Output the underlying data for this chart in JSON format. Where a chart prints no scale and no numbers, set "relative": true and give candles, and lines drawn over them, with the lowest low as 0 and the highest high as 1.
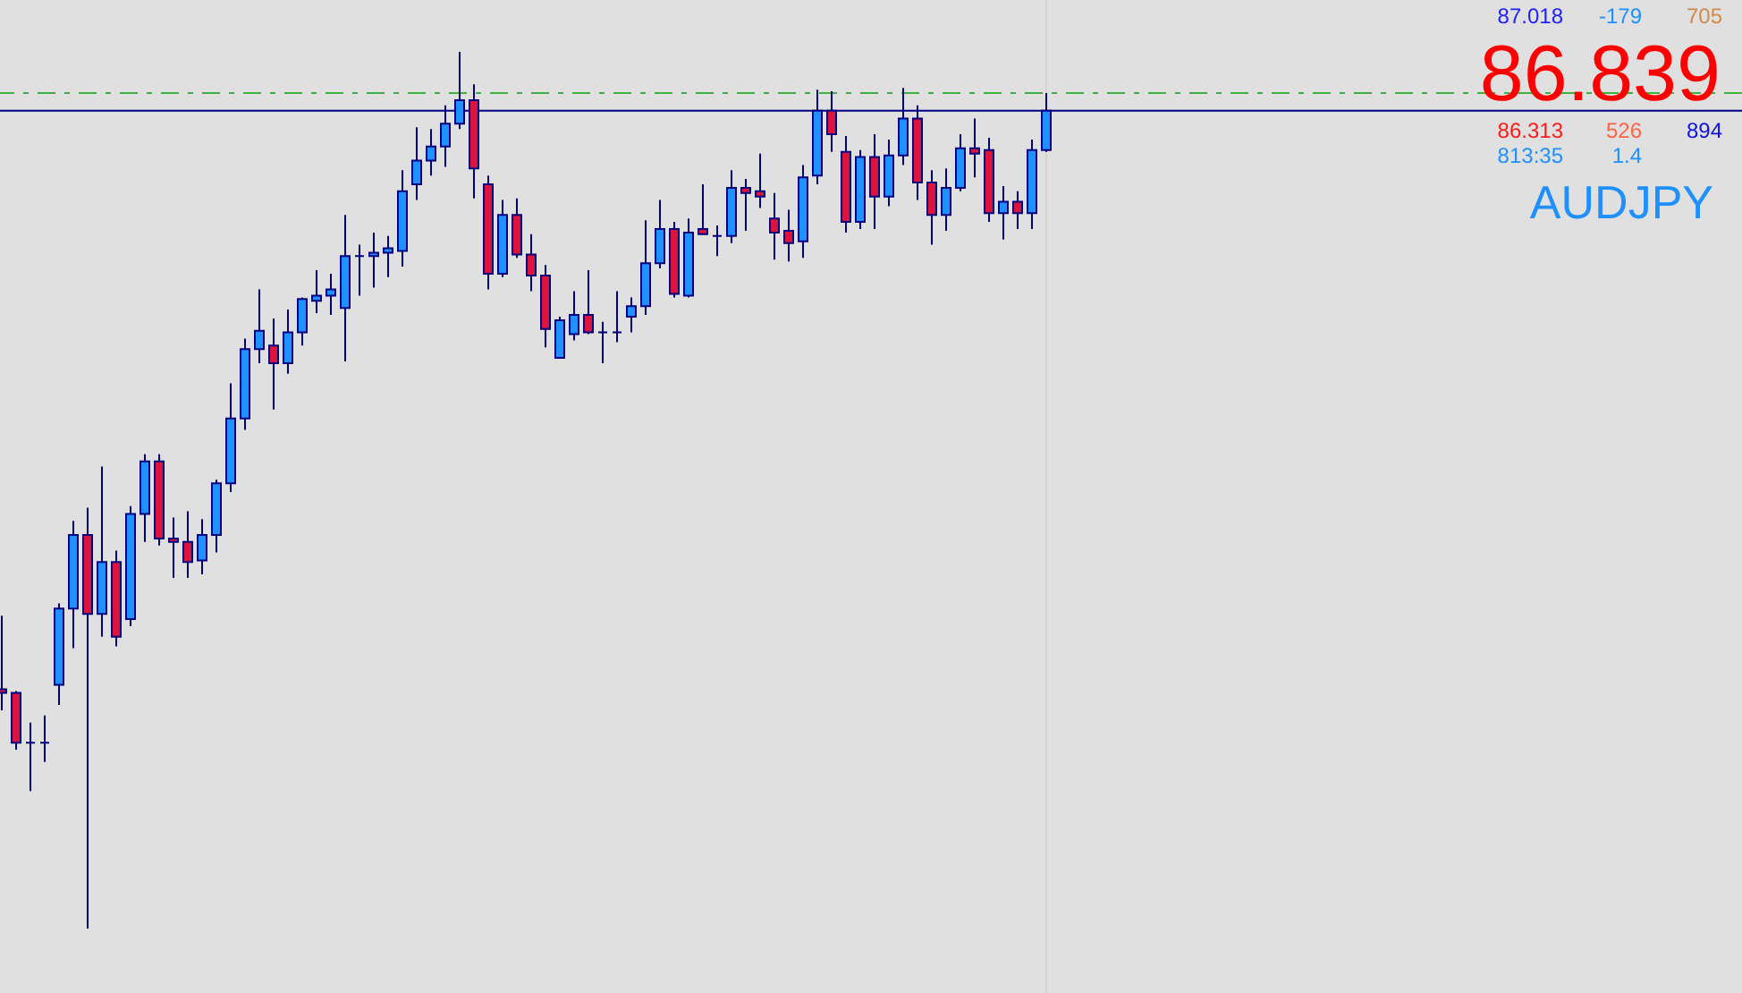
{
  "chart_data": {
    "type": "candlestick",
    "relative": true,
    "categories": [
      null,
      null,
      null,
      null,
      null,
      null,
      null,
      null,
      null,
      null,
      null,
      null,
      null,
      null,
      null,
      null,
      null,
      null,
      null,
      null,
      null,
      null,
      null,
      null,
      null,
      null,
      null,
      null,
      null,
      null,
      null,
      null,
      null,
      null,
      null,
      null,
      null,
      null,
      null,
      null,
      null,
      null,
      null,
      null,
      null,
      null,
      null,
      null,
      null,
      null,
      null,
      null,
      null,
      null,
      null,
      null,
      null,
      null,
      null,
      null,
      null,
      null,
      null,
      null,
      null,
      null,
      null,
      null,
      null,
      null,
      null,
      null,
      null,
      null
    ],
    "ohlc": [
      [
        0.273,
        0.357,
        0.249,
        0.269
      ],
      [
        0.269,
        0.271,
        0.204,
        0.212
      ],
      [
        0.212,
        0.235,
        0.157,
        0.212
      ],
      [
        0.212,
        0.243,
        0.19,
        0.212
      ],
      [
        0.278,
        0.371,
        0.255,
        0.365
      ],
      [
        0.365,
        0.465,
        0.32,
        0.449
      ],
      [
        0.449,
        0.48,
        0,
        0.359
      ],
      [
        0.359,
        0.527,
        0.333,
        0.418
      ],
      [
        0.418,
        0.431,
        0.322,
        0.333
      ],
      [
        0.353,
        0.482,
        0.345,
        0.473
      ],
      [
        0.473,
        0.541,
        0.441,
        0.533
      ],
      [
        0.533,
        0.541,
        0.437,
        0.445
      ],
      [
        0.445,
        0.469,
        0.4,
        0.441
      ],
      [
        0.441,
        0.476,
        0.4,
        0.418
      ],
      [
        0.42,
        0.467,
        0.404,
        0.449
      ],
      [
        0.449,
        0.512,
        0.429,
        0.508
      ],
      [
        0.508,
        0.622,
        0.498,
        0.582
      ],
      [
        0.582,
        0.673,
        0.569,
        0.661
      ],
      [
        0.661,
        0.729,
        0.645,
        0.682
      ],
      [
        0.665,
        0.696,
        0.592,
        0.645
      ],
      [
        0.645,
        0.706,
        0.633,
        0.68
      ],
      [
        0.68,
        0.72,
        0.665,
        0.718
      ],
      [
        0.716,
        0.751,
        0.702,
        0.722
      ],
      [
        0.722,
        0.747,
        0.7,
        0.729
      ],
      [
        0.708,
        0.814,
        0.647,
        0.767
      ],
      [
        0.767,
        0.78,
        0.722,
        0.767
      ],
      [
        0.767,
        0.794,
        0.731,
        0.771
      ],
      [
        0.771,
        0.79,
        0.743,
        0.776
      ],
      [
        0.773,
        0.865,
        0.755,
        0.841
      ],
      [
        0.849,
        0.914,
        0.831,
        0.876
      ],
      [
        0.876,
        0.912,
        0.859,
        0.892
      ],
      [
        0.892,
        0.939,
        0.869,
        0.918
      ],
      [
        0.918,
        1,
        0.912,
        0.945
      ],
      [
        0.945,
        0.963,
        0.833,
        0.867
      ],
      [
        0.849,
        0.859,
        0.729,
        0.747
      ],
      [
        0.747,
        0.831,
        0.743,
        0.814
      ],
      [
        0.814,
        0.833,
        0.765,
        0.769
      ],
      [
        0.769,
        0.792,
        0.727,
        0.745
      ],
      [
        0.745,
        0.757,
        0.663,
        0.684
      ],
      [
        0.651,
        0.698,
        0.651,
        0.694
      ],
      [
        0.678,
        0.727,
        0.671,
        0.7
      ],
      [
        0.7,
        0.751,
        0.678,
        0.68
      ],
      [
        0.68,
        0.692,
        0.645,
        0.68
      ],
      [
        0.68,
        0.727,
        0.669,
        0.68
      ],
      [
        0.698,
        0.72,
        0.68,
        0.71
      ],
      [
        0.71,
        0.808,
        0.7,
        0.759
      ],
      [
        0.759,
        0.831,
        0.753,
        0.798
      ],
      [
        0.798,
        0.806,
        0.72,
        0.724
      ],
      [
        0.722,
        0.81,
        0.72,
        0.794
      ],
      [
        0.798,
        0.849,
        0.792,
        0.792
      ],
      [
        0.79,
        0.802,
        0.767,
        0.79
      ],
      [
        0.79,
        0.865,
        0.782,
        0.845
      ],
      [
        0.845,
        0.855,
        0.796,
        0.839
      ],
      [
        0.841,
        0.884,
        0.822,
        0.835
      ],
      [
        0.81,
        0.839,
        0.763,
        0.794
      ],
      [
        0.796,
        0.82,
        0.761,
        0.782
      ],
      [
        0.784,
        0.871,
        0.765,
        0.857
      ],
      [
        0.859,
        0.957,
        0.849,
        0.933
      ],
      [
        0.933,
        0.955,
        0.886,
        0.906
      ],
      [
        0.886,
        0.904,
        0.794,
        0.806
      ],
      [
        0.806,
        0.888,
        0.798,
        0.88
      ],
      [
        0.88,
        0.906,
        0.798,
        0.835
      ],
      [
        0.835,
        0.9,
        0.824,
        0.882
      ],
      [
        0.882,
        0.959,
        0.871,
        0.924
      ],
      [
        0.924,
        0.939,
        0.831,
        0.851
      ],
      [
        0.851,
        0.865,
        0.78,
        0.814
      ],
      [
        0.814,
        0.867,
        0.796,
        0.845
      ],
      [
        0.845,
        0.906,
        0.841,
        0.89
      ],
      [
        0.89,
        0.924,
        0.857,
        0.884
      ],
      [
        0.888,
        0.902,
        0.806,
        0.816
      ],
      [
        0.816,
        0.847,
        0.786,
        0.829
      ],
      [
        0.829,
        0.841,
        0.798,
        0.816
      ],
      [
        0.816,
        0.9,
        0.798,
        0.888
      ],
      [
        0.888,
        0.953,
        0.886,
        0.933
      ]
    ],
    "color": "#000080",
    "colors": [
      "#dc143c",
      "#dc143c",
      "#000080",
      "#000080",
      "#1e90ff",
      "#1e90ff",
      "#dc143c",
      "#1e90ff",
      "#dc143c",
      "#1e90ff",
      "#1e90ff",
      "#dc143c",
      "#dc143c",
      "#dc143c",
      "#1e90ff",
      "#1e90ff",
      "#1e90ff",
      "#1e90ff",
      "#1e90ff",
      "#dc143c",
      "#1e90ff",
      "#1e90ff",
      "#1e90ff",
      "#1e90ff",
      "#1e90ff",
      "#000080",
      "#1e90ff",
      "#1e90ff",
      "#1e90ff",
      "#1e90ff",
      "#1e90ff",
      "#1e90ff",
      "#1e90ff",
      "#dc143c",
      "#dc143c",
      "#1e90ff",
      "#dc143c",
      "#dc143c",
      "#dc143c",
      "#1e90ff",
      "#1e90ff",
      "#dc143c",
      "#000080",
      "#000080",
      "#1e90ff",
      "#1e90ff",
      "#1e90ff",
      "#dc143c",
      "#1e90ff",
      "#dc143c",
      "#000080",
      "#1e90ff",
      "#dc143c",
      "#dc143c",
      "#dc143c",
      "#dc143c",
      "#1e90ff",
      "#1e90ff",
      "#dc143c",
      "#dc143c",
      "#1e90ff",
      "#dc143c",
      "#1e90ff",
      "#1e90ff",
      "#dc143c",
      "#dc143c",
      "#1e90ff",
      "#1e90ff",
      "#dc143c",
      "#dc143c",
      "#1e90ff",
      "#dc143c",
      "#1e90ff",
      "#1e90ff"
    ],
    "ref_lines": [
      {
        "axis": "y",
        "value": 0.933,
        "color": "#000080",
        "line_style": "solid"
      },
      {
        "axis": "y",
        "value": 0.953,
        "color": "#3cb43c",
        "line_style": "dashed"
      }
    ],
    "annotations": [
      "87.018",
      "-179",
      "705",
      "86.839",
      "86.313",
      "526",
      "894",
      "813:35",
      "1.4",
      "AUDJPY"
    ]
  }
}
